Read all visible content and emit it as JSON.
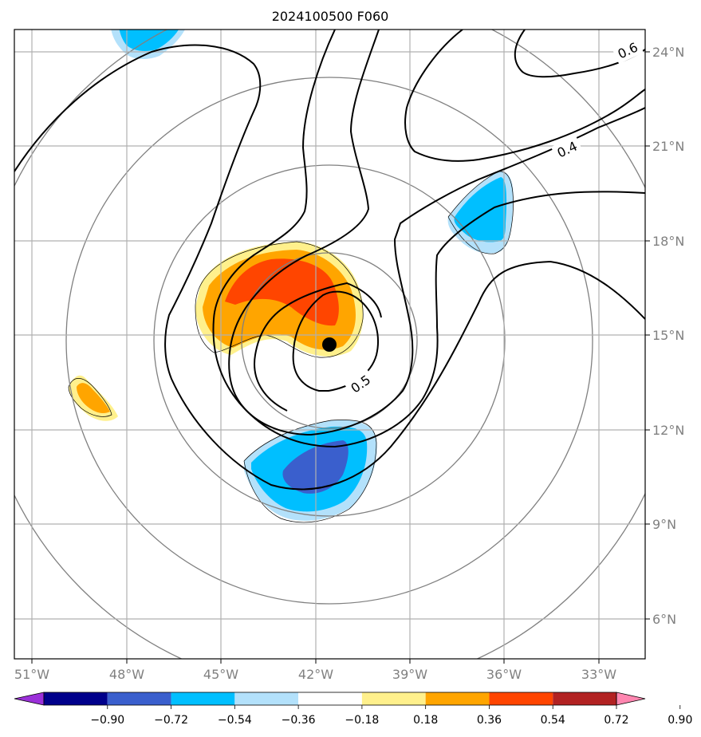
{
  "title": "2024100500 F060",
  "map": {
    "lon_labels": [
      "51°W",
      "48°W",
      "45°W",
      "42°W",
      "39°W",
      "36°W",
      "33°W"
    ],
    "lat_labels": [
      "24°N",
      "21°N",
      "18°N",
      "15°N",
      "12°N",
      "9°N",
      "6°N"
    ],
    "contour_labels": [
      "0.6",
      "0.4",
      "0.5"
    ],
    "center_marker": "storm-center-dot"
  },
  "colorbar": {
    "tick_labels": [
      "−0.90",
      "−0.72",
      "−0.54",
      "−0.36",
      "−0.18",
      "0.18",
      "0.36",
      "0.54",
      "0.72",
      "0.90"
    ],
    "colors": [
      "#9b30d9",
      "#00008b",
      "#3a5fcd",
      "#00bfff",
      "#b3e1fb",
      "#ffffff",
      "#fff08c",
      "#ffa500",
      "#ff4500",
      "#b22222",
      "#ff86b0"
    ]
  }
}
